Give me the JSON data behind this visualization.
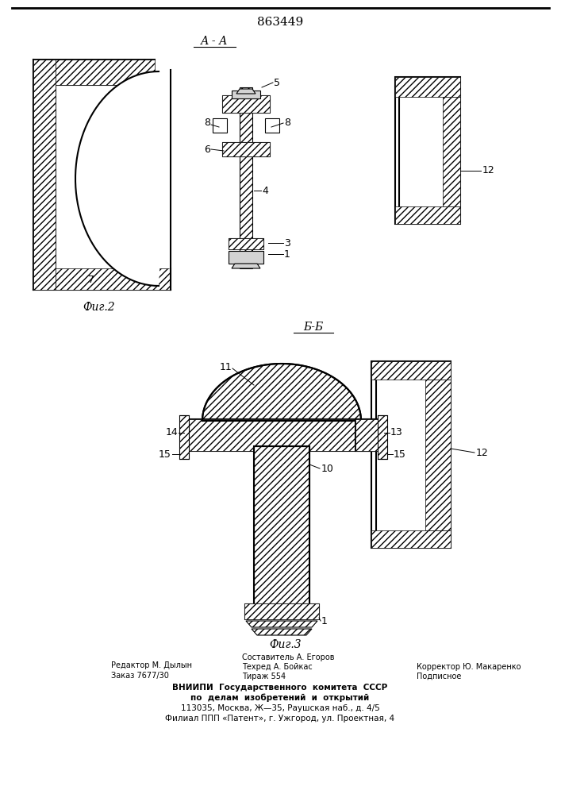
{
  "patent_number": "863449",
  "section_label_top": "А - А",
  "section_label_bottom": "Б-Б",
  "fig2_label": "Фиг.2",
  "fig3_label": "Фиг.3",
  "footer_line1_left": "Редактор М. Дылын",
  "footer_line2_left": "Заказ 7677/30",
  "footer_line1_center": "Составитель А. Егоров",
  "footer_line2_center": "Техред А. Бойкас",
  "footer_line3_center": "Тираж 554",
  "footer_line2_right": "Корректор Ю. Макаренко",
  "footer_line3_right": "Подписное",
  "footer_vniipи": "ВНИИПИ  Государственного  комитета  СССР",
  "footer_vniipи2": "по  делам  изобретений  и  открытий",
  "footer_addr1": "113035, Москва, Ж—35, Раушская наб., д. 4/5",
  "footer_addr2": "Филиал ППП «Патент», г. Ужгород, ул. Проектная, 4",
  "bg_color": "#ffffff"
}
